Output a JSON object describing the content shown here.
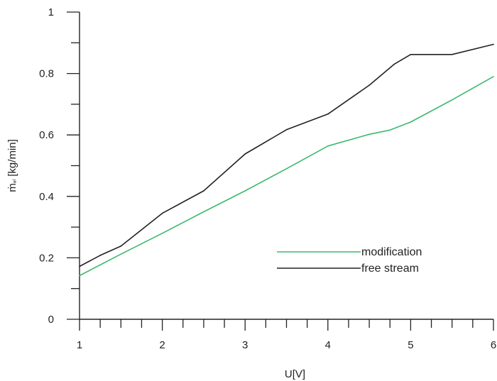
{
  "chart_data": {
    "type": "line",
    "xlabel": "U[V]",
    "ylabel": "ṁ ₐₗ [kg/min]",
    "ylabel_main": "ṁ",
    "ylabel_sub": "ₐₗ",
    "ylabel_unit": " [kg/min]",
    "xlim": [
      1,
      6
    ],
    "ylim": [
      0,
      1
    ],
    "x_ticks": [
      "1",
      "2",
      "3",
      "4",
      "5",
      "6"
    ],
    "y_ticks": [
      "0",
      "0.2",
      "0.4",
      "0.6",
      "0.8",
      "1"
    ],
    "y_tick_values": [
      0,
      0.2,
      0.4,
      0.6,
      0.8,
      1
    ],
    "x_minor_step": 0.25,
    "y_minor_step": 0.1,
    "legend_position": "lower-right",
    "series": [
      {
        "name": "modification",
        "color": "#3cb96e",
        "x": [
          1,
          1.5,
          2,
          2.5,
          3,
          3.5,
          4,
          4.5,
          4.75,
          5,
          5.5,
          6
        ],
        "y": [
          0.142,
          0.212,
          0.28,
          0.35,
          0.418,
          0.49,
          0.564,
          0.602,
          0.616,
          0.642,
          0.714,
          0.79
        ]
      },
      {
        "name": "free stream",
        "color": "#222222",
        "x": [
          1,
          1.25,
          1.5,
          2,
          2.5,
          3,
          3.5,
          4,
          4.5,
          4.8,
          5,
          5.5,
          6
        ],
        "y": [
          0.172,
          0.208,
          0.238,
          0.345,
          0.418,
          0.538,
          0.617,
          0.668,
          0.762,
          0.83,
          0.862,
          0.862,
          0.895
        ]
      }
    ]
  }
}
